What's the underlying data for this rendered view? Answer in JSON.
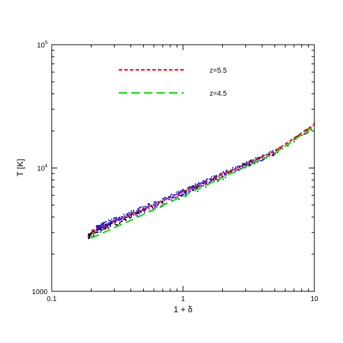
{
  "chart_data": {
    "type": "scatter",
    "title": "",
    "xlabel": "1 + δ",
    "ylabel": "T [K]",
    "x_scale": "log",
    "y_scale": "log",
    "xlim": [
      0.1,
      10
    ],
    "ylim": [
      1000,
      100000
    ],
    "grid": false,
    "legend_position": "top-left",
    "x_ticks": [
      {
        "value": 0.1,
        "label": "0.1"
      },
      {
        "value": 1,
        "label": "1"
      },
      {
        "value": 10,
        "label": "10"
      }
    ],
    "y_ticks": [
      {
        "value": 1000,
        "label": "1000"
      },
      {
        "value": 10000,
        "label": "10^4",
        "base": "10",
        "exp": "4"
      },
      {
        "value": 100000,
        "label": "10^5",
        "base": "10",
        "exp": "5"
      }
    ],
    "series": [
      {
        "name": "z=5.5",
        "color": "#ff0000",
        "dash": "short",
        "x": [
          0.2,
          0.5,
          1,
          2,
          5,
          10
        ],
        "y": [
          3100,
          4650,
          6440,
          8900,
          13700,
          22600
        ]
      },
      {
        "name": "z=4.5",
        "color": "#00dd00",
        "dash": "long",
        "x": [
          0.2,
          0.5,
          1,
          2,
          5,
          10
        ],
        "y": [
          2700,
          4200,
          5940,
          8400,
          13200,
          21900
        ]
      }
    ],
    "scatter_bands": [
      {
        "color": "#0000ff",
        "x": [
          0.22,
          0.26,
          0.3,
          0.4,
          0.5,
          0.7,
          1,
          1.5,
          2,
          3,
          4,
          5
        ],
        "y": [
          3250,
          3520,
          3760,
          4260,
          4680,
          5450,
          6400,
          7700,
          8850,
          10650,
          12100,
          13400
        ]
      },
      {
        "color": "#000000",
        "x": [
          0.19,
          0.25,
          0.35,
          0.5,
          0.8,
          1.2,
          2,
          3.5,
          6,
          10
        ],
        "y": [
          2780,
          3300,
          3800,
          4420,
          5480,
          6550,
          8500,
          11300,
          14700,
          21900
        ]
      }
    ]
  }
}
